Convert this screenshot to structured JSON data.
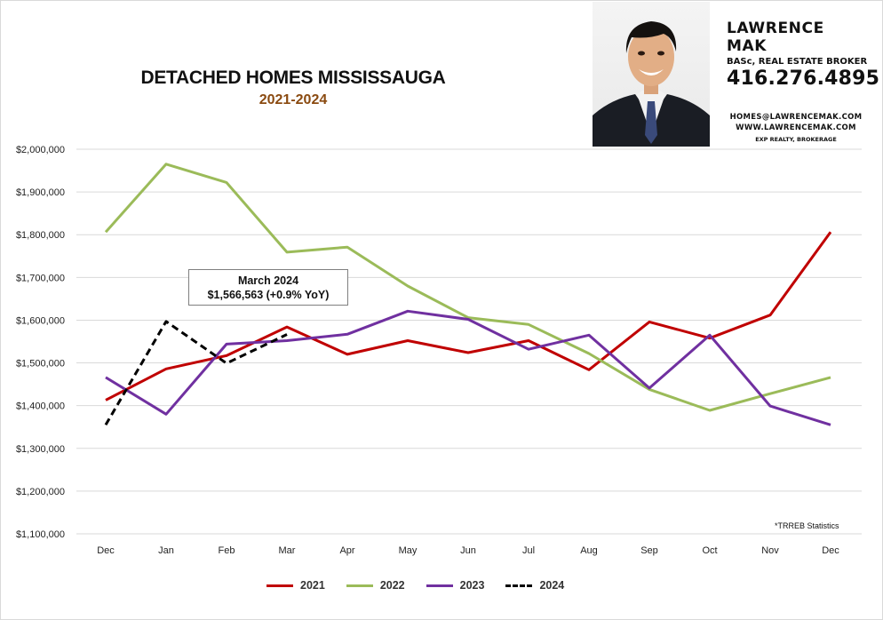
{
  "page": {
    "title": "DETACHED HOMES MISSISSAUGA",
    "subtitle": "2021-2024",
    "source_note": "*TRREB Statistics"
  },
  "agent": {
    "name": "LAWRENCE MAK",
    "title": "BASc, REAL ESTATE BROKER",
    "phone": "416.276.4895",
    "email": "HOMES@LAWRENCEMAK.COM",
    "website": "WWW.LAWRENCEMAK.COM",
    "brokerage": "EXP REALTY, BROKERAGE"
  },
  "callout": {
    "line1": "March 2024",
    "line2": "$1,566,563  (+0.9%  YoY)"
  },
  "chart_data": {
    "type": "line",
    "title": "DETACHED HOMES MISSISSAUGA",
    "subtitle": "2021-2024",
    "categories": [
      "Dec",
      "Jan",
      "Feb",
      "Mar",
      "Apr",
      "May",
      "Jun",
      "Jul",
      "Aug",
      "Sep",
      "Oct",
      "Nov",
      "Dec"
    ],
    "ylim": [
      1100000,
      2000000
    ],
    "yticks": [
      1100000,
      1200000,
      1300000,
      1400000,
      1500000,
      1600000,
      1700000,
      1800000,
      1900000,
      2000000
    ],
    "ytick_labels": [
      "$1,100,000",
      "$1,200,000",
      "$1,300,000",
      "$1,400,000",
      "$1,500,000",
      "$1,600,000",
      "$1,700,000",
      "$1,800,000",
      "$1,900,000",
      "$2,000,000"
    ],
    "grid": true,
    "legend_position": "bottom",
    "series": [
      {
        "name": "2021",
        "color": "#c00000",
        "dashed": false,
        "values": [
          1413000,
          1486000,
          1517000,
          1584000,
          1520000,
          1552000,
          1524000,
          1552000,
          1484000,
          1596000,
          1558000,
          1612000,
          1806000
        ]
      },
      {
        "name": "2022",
        "color": "#9bbb59",
        "dashed": false,
        "values": [
          1806000,
          1965000,
          1922000,
          1759000,
          1771000,
          1680000,
          1606000,
          1590000,
          1522000,
          1438000,
          1389000,
          1428000,
          1466000
        ]
      },
      {
        "name": "2023",
        "color": "#7030a0",
        "dashed": false,
        "values": [
          1466000,
          1380000,
          1544000,
          1552000,
          1567000,
          1621000,
          1602000,
          1532000,
          1565000,
          1441000,
          1565000,
          1399000,
          1355000
        ]
      },
      {
        "name": "2024",
        "color": "#000000",
        "dashed": true,
        "values": [
          1355000,
          1597000,
          1499000,
          1566563,
          null,
          null,
          null,
          null,
          null,
          null,
          null,
          null,
          null
        ]
      }
    ]
  }
}
